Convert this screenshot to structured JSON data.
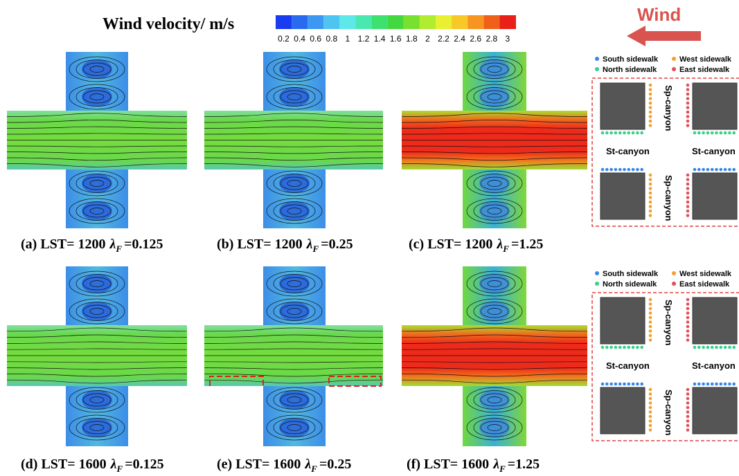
{
  "title": "Wind velocity/ m/s",
  "colorbar": {
    "ticks": [
      0.2,
      0.4,
      0.6,
      0.8,
      1,
      1.2,
      1.4,
      1.6,
      1.8,
      2,
      2.2,
      2.4,
      2.6,
      2.8,
      3
    ]
  },
  "wind_label": "Wind",
  "panels": [
    {
      "caption": {
        "prefix": "(a) LST= 1200",
        "symbol": "λ",
        "subscript": "F",
        "suffix": "=0.125"
      }
    },
    {
      "caption": {
        "prefix": "(b) LST= 1200",
        "symbol": "λ",
        "subscript": "F",
        "suffix": "=0.25"
      }
    },
    {
      "caption": {
        "prefix": "(c) LST= 1200",
        "symbol": "λ",
        "subscript": "F",
        "suffix": "=1.25"
      }
    },
    {
      "caption": {
        "prefix": "(d) LST= 1600",
        "symbol": "λ",
        "subscript": "F",
        "suffix": "=0.125"
      }
    },
    {
      "caption": {
        "prefix": "(e) LST= 1600",
        "symbol": "λ",
        "subscript": "F",
        "suffix": "=0.25"
      }
    },
    {
      "caption": {
        "prefix": "(f) LST= 1600",
        "symbol": "λ",
        "subscript": "F",
        "suffix": "=1.25"
      }
    }
  ],
  "legends": [
    {
      "items": [
        "South sidewalk",
        "West sidewalk",
        "North sidewalk",
        "East  sidewalk"
      ],
      "canyons": [
        "Sp-canyon",
        "St-canyon",
        "St-canyon",
        "Sp-canyon"
      ]
    },
    {
      "items": [
        "South sidewalk",
        "West sidewalk",
        "North sidewalk",
        "East  sidewalk"
      ],
      "canyons": [
        "Sp-canyon",
        "St-canyon",
        "St-canyon",
        "Sp-canyon"
      ]
    }
  ]
}
